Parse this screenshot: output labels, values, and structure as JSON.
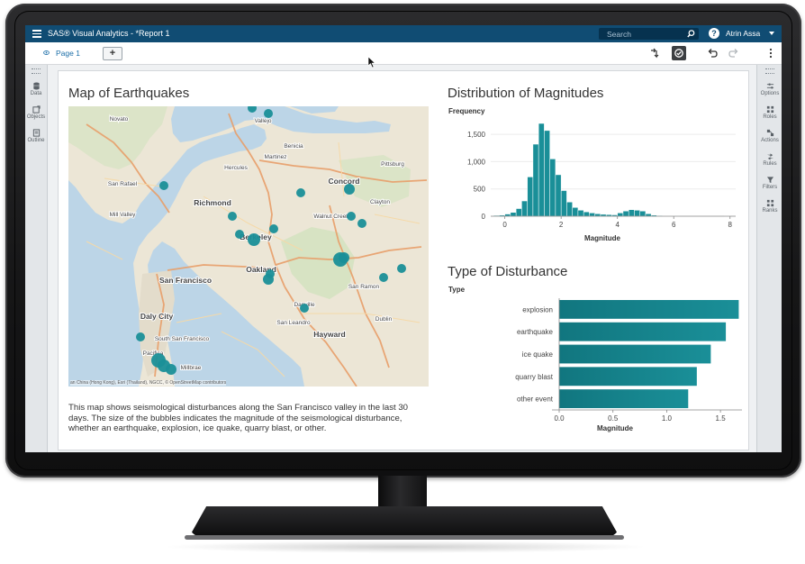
{
  "app": {
    "title": "SAS® Visual Analytics - *Report 1",
    "search_placeholder": "Search",
    "user": "Atrin Assa"
  },
  "toolbar": {
    "page_tab": "Page 1",
    "add_page": "+"
  },
  "left_rail": [
    {
      "label": "Data",
      "icon": "data-icon"
    },
    {
      "label": "Objects",
      "icon": "objects-icon"
    },
    {
      "label": "Outline",
      "icon": "outline-icon"
    }
  ],
  "right_rail": [
    {
      "label": "Options",
      "icon": "options-icon"
    },
    {
      "label": "Roles",
      "icon": "roles-icon"
    },
    {
      "label": "Actions",
      "icon": "actions-icon"
    },
    {
      "label": "Rules",
      "icon": "rules-icon"
    },
    {
      "label": "Filters",
      "icon": "filters-icon"
    },
    {
      "label": "Ranks",
      "icon": "ranks-icon"
    }
  ],
  "map": {
    "title": "Map of Earthquakes",
    "description": "This map shows seismological disturbances along the San Francisco valley in the last 30 days. The size of the bubbles indicates the magnitude of the seismological disturbance, whether an earthquake, explosion, ice quake, quarry blast, or other.",
    "attribution": "an China (Hong Kong), Esri (Thailand), NGCC, © OpenStreetMap contributors",
    "place_labels": [
      "Novato",
      "Vallejo",
      "Benicia",
      "Martinez",
      "Hercules",
      "Pittsburg",
      "San Rafael",
      "Concord",
      "Mill Valley",
      "Richmond",
      "Clayton",
      "Walnut Creek",
      "Berkeley",
      "San Ramon",
      "Oakland",
      "San Francisco",
      "Danville",
      "Daly City",
      "San Leandro",
      "Dublin",
      "South San Francisco",
      "Hayward",
      "Pacifica",
      "Millbrae"
    ],
    "bubble_color": "#1a8f98"
  },
  "chart_data": [
    {
      "type": "bar",
      "title": "Distribution of Magnitudes",
      "xlabel": "Magnitude",
      "ylabel": "Frequency",
      "xlim": [
        -0.5,
        8.2
      ],
      "ylim": [
        0,
        1700
      ],
      "x_ticks": [
        "0",
        "2",
        "4",
        "6",
        "8"
      ],
      "y_ticks": [
        "0",
        "500",
        "1,000",
        "1,500"
      ],
      "bin_width": 0.2,
      "x": [
        -0.3,
        -0.1,
        0.1,
        0.3,
        0.5,
        0.7,
        0.9,
        1.1,
        1.3,
        1.5,
        1.7,
        1.9,
        2.1,
        2.3,
        2.5,
        2.7,
        2.9,
        3.1,
        3.3,
        3.5,
        3.7,
        3.9,
        4.1,
        4.3,
        4.5,
        4.7,
        4.9,
        5.1,
        5.3,
        5.5,
        5.7,
        5.9,
        6.1,
        7.9
      ],
      "values": [
        15,
        20,
        40,
        70,
        140,
        280,
        720,
        1320,
        1700,
        1570,
        1050,
        760,
        470,
        260,
        160,
        110,
        80,
        60,
        45,
        35,
        30,
        25,
        60,
        95,
        120,
        110,
        95,
        45,
        20,
        12,
        8,
        5,
        3,
        4
      ],
      "color": "#1a8f98"
    },
    {
      "type": "bar",
      "orientation": "horizontal",
      "title": "Type of Disturbance",
      "xlabel": "Magnitude",
      "ylabel": "Type",
      "categories": [
        "explosion",
        "earthquake",
        "ice quake",
        "quarry blast",
        "other event"
      ],
      "values": [
        1.67,
        1.55,
        1.41,
        1.28,
        1.2
      ],
      "xlim": [
        0,
        1.7
      ],
      "x_ticks": [
        "0.0",
        "0.5",
        "1.0",
        "1.5"
      ],
      "color": "#1a8f98"
    }
  ]
}
